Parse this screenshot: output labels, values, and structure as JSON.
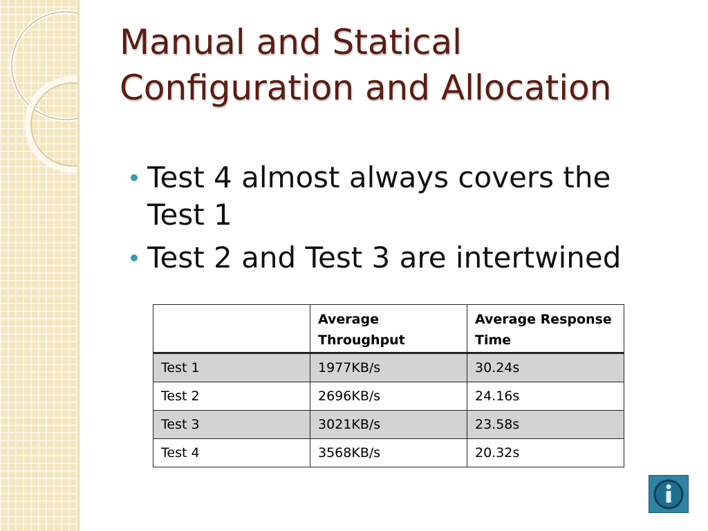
{
  "title": "Manual and Statical Configuration and Allocation",
  "bullets": [
    "Test 4 almost always covers the Test 1",
    "Test 2 and Test 3 are intertwined"
  ],
  "table": {
    "header": [
      "Average Throughput",
      "Average Response Time"
    ],
    "rows": [
      [
        "Test 1",
        "1977KB/s",
        "30.24s"
      ],
      [
        "Test 2",
        "2696KB/s",
        "24.16s"
      ],
      [
        "Test 3",
        "3021KB/s",
        "23.58s"
      ],
      [
        "Test 4",
        "3568KB/s",
        "20.32s"
      ]
    ]
  }
}
